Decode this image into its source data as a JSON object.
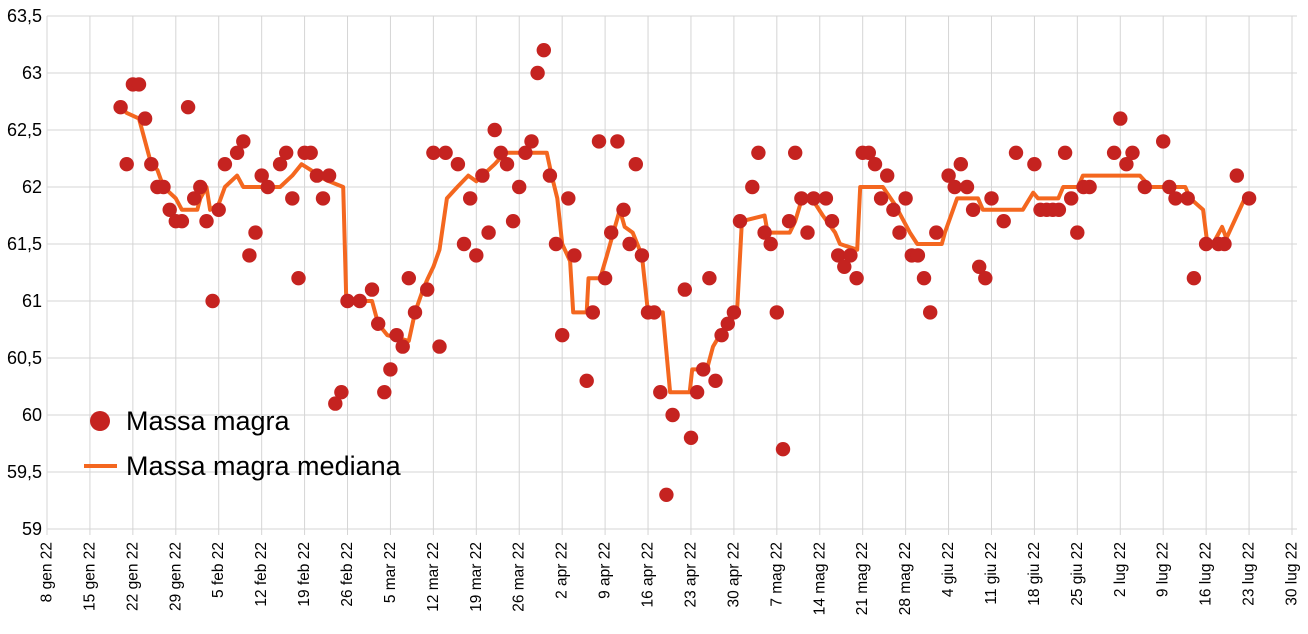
{
  "chart_data": {
    "type": "scatter",
    "title": "",
    "xlabel": "",
    "ylabel": "",
    "grid": true,
    "legend_position": "inside-middle-left",
    "decimal_separator": ",",
    "x_axis": {
      "tick_labels": [
        "8 gen 22",
        "15 gen 22",
        "22 gen 22",
        "29 gen 22",
        "5 feb 22",
        "12 feb 22",
        "19 feb 22",
        "26 feb 22",
        "5 mar 22",
        "12 mar 22",
        "19 mar 22",
        "26 mar 22",
        "2 apr 22",
        "9 apr 22",
        "16 apr 22",
        "23 apr 22",
        "30 apr 22",
        "7 mag 22",
        "14 mag 22",
        "21 mag 22",
        "28 mag 22",
        "4 giu 22",
        "11 giu 22",
        "18 giu 22",
        "25 giu 22",
        "2 lug 22",
        "9 lug 22",
        "16 lug 22",
        "23 lug 22",
        "30 lug 22"
      ],
      "days_per_tick": 7,
      "xlim_days": [
        0,
        203
      ]
    },
    "y_axis": {
      "min": 59,
      "max": 63.5,
      "step": 0.5,
      "tick_labels": [
        "63,5",
        "63",
        "62,5",
        "62",
        "61,5",
        "61",
        "60,5",
        "60",
        "59,5",
        "59"
      ]
    },
    "series": [
      {
        "name": "Massa magra",
        "type": "scatter",
        "color": "#c52320",
        "marker_radius": 7.2,
        "points": [
          [
            12,
            62.7
          ],
          [
            13,
            62.2
          ],
          [
            14,
            62.9
          ],
          [
            15,
            62.9
          ],
          [
            16,
            62.6
          ],
          [
            17,
            62.2
          ],
          [
            18,
            62.0
          ],
          [
            19,
            62.0
          ],
          [
            20,
            61.8
          ],
          [
            21,
            61.7
          ],
          [
            22,
            61.7
          ],
          [
            23,
            62.7
          ],
          [
            24,
            61.9
          ],
          [
            25,
            62.0
          ],
          [
            26,
            61.7
          ],
          [
            27,
            61.0
          ],
          [
            28,
            61.8
          ],
          [
            29,
            62.2
          ],
          [
            31,
            62.3
          ],
          [
            32,
            62.4
          ],
          [
            33,
            61.4
          ],
          [
            34,
            61.6
          ],
          [
            35,
            62.1
          ],
          [
            36,
            62.0
          ],
          [
            38,
            62.2
          ],
          [
            39,
            62.3
          ],
          [
            40,
            61.9
          ],
          [
            41,
            61.2
          ],
          [
            42,
            62.3
          ],
          [
            43,
            62.3
          ],
          [
            44,
            62.1
          ],
          [
            45,
            61.9
          ],
          [
            46,
            62.1
          ],
          [
            47,
            60.1
          ],
          [
            48,
            60.2
          ],
          [
            49,
            61.0
          ],
          [
            51,
            61.0
          ],
          [
            53,
            61.1
          ],
          [
            54,
            60.8
          ],
          [
            55,
            60.2
          ],
          [
            56,
            60.4
          ],
          [
            57,
            60.7
          ],
          [
            58,
            60.6
          ],
          [
            59,
            61.2
          ],
          [
            60,
            60.9
          ],
          [
            62,
            61.1
          ],
          [
            63,
            62.3
          ],
          [
            64,
            60.6
          ],
          [
            65,
            62.3
          ],
          [
            67,
            62.2
          ],
          [
            68,
            61.5
          ],
          [
            69,
            61.9
          ],
          [
            70,
            61.4
          ],
          [
            71,
            62.1
          ],
          [
            72,
            61.6
          ],
          [
            73,
            62.5
          ],
          [
            74,
            62.3
          ],
          [
            75,
            62.2
          ],
          [
            76,
            61.7
          ],
          [
            77,
            62.0
          ],
          [
            78,
            62.3
          ],
          [
            79,
            62.4
          ],
          [
            80,
            63.0
          ],
          [
            81,
            63.2
          ],
          [
            82,
            62.1
          ],
          [
            83,
            61.5
          ],
          [
            84,
            60.7
          ],
          [
            85,
            61.9
          ],
          [
            86,
            61.4
          ],
          [
            88,
            60.3
          ],
          [
            89,
            60.9
          ],
          [
            90,
            62.4
          ],
          [
            91,
            61.2
          ],
          [
            92,
            61.6
          ],
          [
            93,
            62.4
          ],
          [
            94,
            61.8
          ],
          [
            95,
            61.5
          ],
          [
            96,
            62.2
          ],
          [
            97,
            61.4
          ],
          [
            98,
            60.9
          ],
          [
            99,
            60.9
          ],
          [
            100,
            60.2
          ],
          [
            101,
            59.3
          ],
          [
            102,
            60.0
          ],
          [
            104,
            61.1
          ],
          [
            105,
            59.8
          ],
          [
            106,
            60.2
          ],
          [
            107,
            60.4
          ],
          [
            108,
            61.2
          ],
          [
            109,
            60.3
          ],
          [
            110,
            60.7
          ],
          [
            111,
            60.8
          ],
          [
            112,
            60.9
          ],
          [
            113,
            61.7
          ],
          [
            115,
            62.0
          ],
          [
            116,
            62.3
          ],
          [
            117,
            61.6
          ],
          [
            118,
            61.5
          ],
          [
            119,
            60.9
          ],
          [
            120,
            59.7
          ],
          [
            121,
            61.7
          ],
          [
            122,
            62.3
          ],
          [
            123,
            61.9
          ],
          [
            124,
            61.6
          ],
          [
            125,
            61.9
          ],
          [
            127,
            61.9
          ],
          [
            128,
            61.7
          ],
          [
            129,
            61.4
          ],
          [
            130,
            61.3
          ],
          [
            131,
            61.4
          ],
          [
            132,
            61.2
          ],
          [
            133,
            62.3
          ],
          [
            134,
            62.3
          ],
          [
            135,
            62.2
          ],
          [
            136,
            61.9
          ],
          [
            137,
            62.1
          ],
          [
            138,
            61.8
          ],
          [
            139,
            61.6
          ],
          [
            140,
            61.9
          ],
          [
            141,
            61.4
          ],
          [
            142,
            61.4
          ],
          [
            143,
            61.2
          ],
          [
            144,
            60.9
          ],
          [
            145,
            61.6
          ],
          [
            147,
            62.1
          ],
          [
            148,
            62.0
          ],
          [
            149,
            62.2
          ],
          [
            150,
            62.0
          ],
          [
            151,
            61.8
          ],
          [
            152,
            61.3
          ],
          [
            153,
            61.2
          ],
          [
            154,
            61.9
          ],
          [
            156,
            61.7
          ],
          [
            158,
            62.3
          ],
          [
            161,
            62.2
          ],
          [
            162,
            61.8
          ],
          [
            163,
            61.8
          ],
          [
            164,
            61.8
          ],
          [
            165,
            61.8
          ],
          [
            166,
            62.3
          ],
          [
            167,
            61.9
          ],
          [
            168,
            61.6
          ],
          [
            169,
            62.0
          ],
          [
            170,
            62.0
          ],
          [
            174,
            62.3
          ],
          [
            175,
            62.6
          ],
          [
            176,
            62.2
          ],
          [
            177,
            62.3
          ],
          [
            179,
            62.0
          ],
          [
            182,
            62.4
          ],
          [
            183,
            62.0
          ],
          [
            184,
            61.9
          ],
          [
            186,
            61.9
          ],
          [
            187,
            61.2
          ],
          [
            189,
            61.5
          ],
          [
            191,
            61.5
          ],
          [
            192,
            61.5
          ],
          [
            194,
            62.1
          ],
          [
            196,
            61.9
          ]
        ]
      },
      {
        "name": "Massa magra mediana",
        "type": "line",
        "color": "#f4671f",
        "line_width": 4,
        "points": [
          [
            12,
            62.7
          ],
          [
            13,
            62.65
          ],
          [
            15,
            62.6
          ],
          [
            16.5,
            62.3
          ],
          [
            17,
            62.2
          ],
          [
            18,
            62.15
          ],
          [
            19,
            62.0
          ],
          [
            21,
            61.9
          ],
          [
            22,
            61.8
          ],
          [
            24.5,
            61.8
          ],
          [
            25,
            61.9
          ],
          [
            26,
            62.0
          ],
          [
            26.6,
            61.8
          ],
          [
            28,
            61.85
          ],
          [
            29,
            62.0
          ],
          [
            31,
            62.1
          ],
          [
            32,
            62.0
          ],
          [
            38,
            62.0
          ],
          [
            40,
            62.1
          ],
          [
            41.5,
            62.2
          ],
          [
            43,
            62.15
          ],
          [
            44,
            62.1
          ],
          [
            46,
            62.05
          ],
          [
            48.3,
            62.0
          ],
          [
            48.8,
            61.0
          ],
          [
            53,
            61.0
          ],
          [
            54,
            60.8
          ],
          [
            55.5,
            60.7
          ],
          [
            59,
            60.65
          ],
          [
            60,
            60.9
          ],
          [
            61.3,
            61.1
          ],
          [
            62.1,
            61.2
          ],
          [
            63,
            61.3
          ],
          [
            64,
            61.45
          ],
          [
            65.2,
            61.9
          ],
          [
            66.9,
            62.0
          ],
          [
            68.7,
            62.1
          ],
          [
            70,
            62.05
          ],
          [
            71,
            62.1
          ],
          [
            73,
            62.2
          ],
          [
            74.7,
            62.3
          ],
          [
            81.5,
            62.3
          ],
          [
            82.3,
            62.1
          ],
          [
            83.2,
            61.9
          ],
          [
            84,
            61.5
          ],
          [
            85.3,
            61.35
          ],
          [
            85.8,
            60.9
          ],
          [
            88,
            60.9
          ],
          [
            88.3,
            61.2
          ],
          [
            90.2,
            61.2
          ],
          [
            91.3,
            61.4
          ],
          [
            93.4,
            61.8
          ],
          [
            94.2,
            61.65
          ],
          [
            95.5,
            61.6
          ],
          [
            97,
            61.4
          ],
          [
            98,
            60.9
          ],
          [
            100.4,
            60.9
          ],
          [
            101.6,
            60.2
          ],
          [
            104.8,
            60.2
          ],
          [
            105.2,
            60.4
          ],
          [
            107.6,
            60.4
          ],
          [
            108.6,
            60.6
          ],
          [
            109.7,
            60.7
          ],
          [
            112.5,
            60.9
          ],
          [
            113.3,
            61.7
          ],
          [
            117,
            61.75
          ],
          [
            117.5,
            61.6
          ],
          [
            121.1,
            61.6
          ],
          [
            122,
            61.7
          ],
          [
            123.1,
            61.9
          ],
          [
            124.7,
            61.9
          ],
          [
            126.5,
            61.75
          ],
          [
            128.5,
            61.6
          ],
          [
            129.3,
            61.5
          ],
          [
            132.1,
            61.45
          ],
          [
            132.6,
            62.0
          ],
          [
            136.3,
            62.0
          ],
          [
            138.2,
            61.85
          ],
          [
            140.7,
            61.6
          ],
          [
            141.9,
            61.5
          ],
          [
            145.9,
            61.5
          ],
          [
            146.4,
            61.6
          ],
          [
            148.4,
            61.9
          ],
          [
            151.8,
            61.9
          ],
          [
            152.6,
            61.8
          ],
          [
            159.1,
            61.8
          ],
          [
            160.8,
            61.95
          ],
          [
            161.6,
            61.9
          ],
          [
            164.9,
            61.9
          ],
          [
            165.7,
            62.0
          ],
          [
            168.1,
            62.0
          ],
          [
            168.9,
            62.1
          ],
          [
            178.2,
            62.1
          ],
          [
            179.9,
            62.0
          ],
          [
            185.6,
            62.0
          ],
          [
            186.4,
            61.9
          ],
          [
            188.5,
            61.8
          ],
          [
            189.2,
            61.5
          ],
          [
            190.1,
            61.5
          ],
          [
            191.6,
            61.65
          ],
          [
            192.3,
            61.55
          ],
          [
            195.3,
            61.9
          ]
        ]
      }
    ],
    "legend_entries": [
      "Massa magra",
      "Massa magra mediana"
    ]
  },
  "style": {
    "grid_color": "#d5d5d5",
    "text_color": "#000000",
    "background": "#ffffff"
  }
}
